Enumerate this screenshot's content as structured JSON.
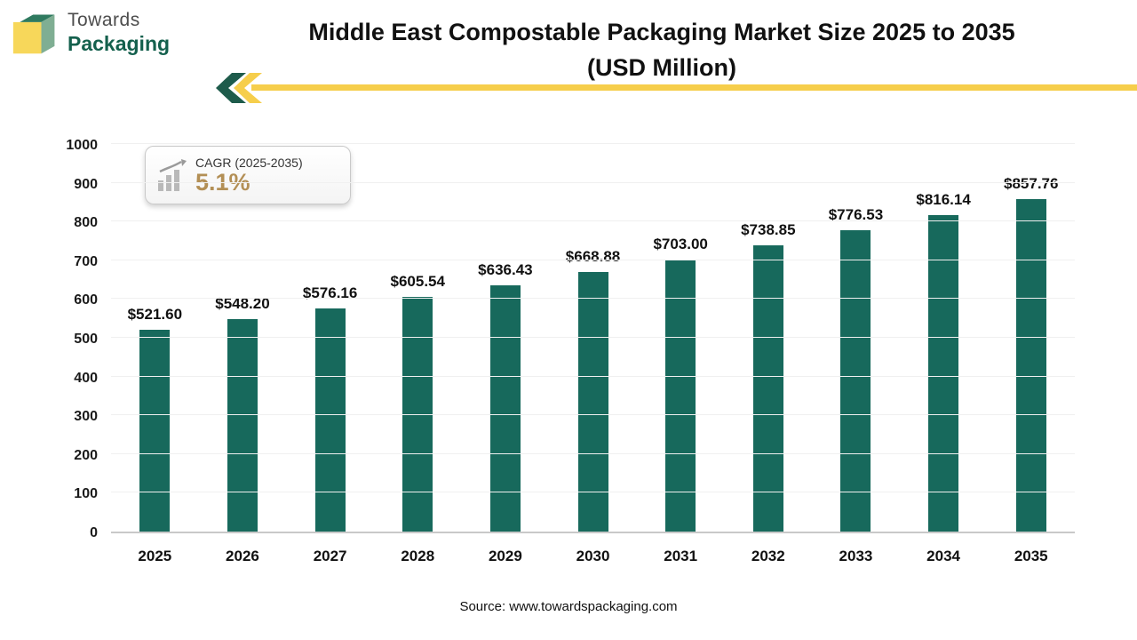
{
  "logo": {
    "line1": "Towards",
    "line2": "Packaging"
  },
  "header": {
    "title_line1": "Middle East Compostable Packaging Market Size 2025 to 2035",
    "title_line2": "(USD Million)"
  },
  "cagr": {
    "label": "CAGR (2025-2035)",
    "value": "5.1%"
  },
  "footer": {
    "source": "Source: www.towardspackaging.com"
  },
  "colors": {
    "bar": "#17695c",
    "accent_gold": "#f6ce4b",
    "logo_green": "#14604d",
    "cagr_gold": "#b38f55"
  },
  "chart_data": {
    "type": "bar",
    "title": "Middle East Compostable Packaging Market Size 2025 to 2035 (USD Million)",
    "categories": [
      "2025",
      "2026",
      "2027",
      "2028",
      "2029",
      "2030",
      "2031",
      "2032",
      "2033",
      "2034",
      "2035"
    ],
    "values": [
      521.6,
      548.2,
      576.16,
      605.54,
      636.43,
      668.88,
      703.0,
      738.85,
      776.53,
      816.14,
      857.76
    ],
    "value_labels": [
      "$521.60",
      "$548.20",
      "$576.16",
      "$605.54",
      "$636.43",
      "$668.88",
      "$703.00",
      "$738.85",
      "$776.53",
      "$816.14",
      "$857.76"
    ],
    "xlabel": "",
    "ylabel": "",
    "ylim": [
      0,
      1000
    ],
    "ytick_step": 100,
    "grid": "faint-horizontal",
    "legend": "none",
    "bar_color": "#17695c"
  }
}
